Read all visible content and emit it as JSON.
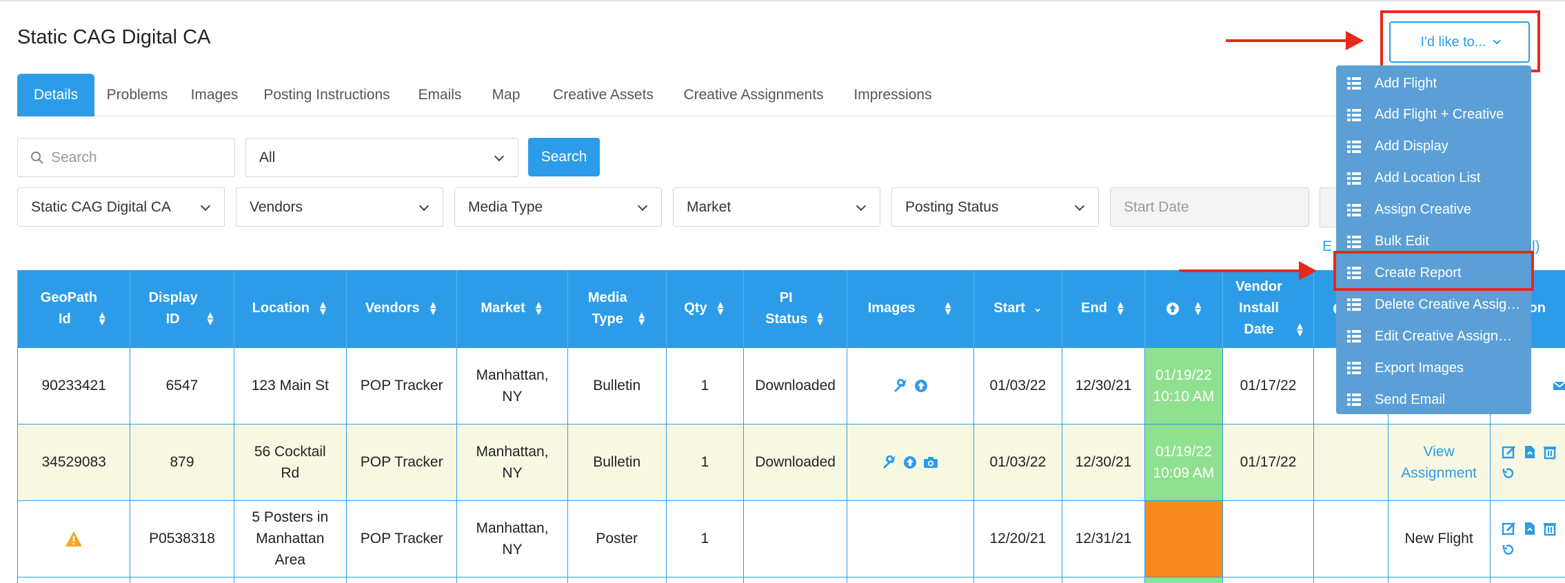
{
  "page": {
    "title": "Static CAG Digital CA"
  },
  "tabs": [
    {
      "label": "Details",
      "active": true
    },
    {
      "label": "Problems"
    },
    {
      "label": "Images"
    },
    {
      "label": "Posting Instructions"
    },
    {
      "label": "Emails"
    },
    {
      "label": "Map"
    },
    {
      "label": "Creative Assets"
    },
    {
      "label": "Creative Assignments"
    },
    {
      "label": "Impressions"
    }
  ],
  "filters": {
    "search_placeholder": "Search",
    "scope_value": "All",
    "search_button": "Search",
    "campaign_value": "Static CAG Digital CA",
    "vendors": "Vendors",
    "media_type": "Media Type",
    "market": "Market",
    "posting_status": "Posting Status",
    "start_date_placeholder": "Start Date",
    "edit_link_fragment": "E",
    "edit_link_tail": "l)"
  },
  "actions": {
    "button_label": "I'd like to...",
    "menu": [
      "Add Flight",
      "Add Flight + Creative",
      "Add Display",
      "Add Location List",
      "Assign Creative",
      "Bulk Edit",
      "Create Report",
      "Delete Creative Assig…",
      "Edit Creative Assign…",
      "Export Images",
      "Send Email"
    ],
    "highlighted": "Create Report"
  },
  "table": {
    "headers": [
      "GeoPath Id",
      "Display ID",
      "Location",
      "Vendors",
      "Market",
      "Media Type",
      "Qty",
      "PI Status",
      "Images",
      "Start",
      "End",
      "",
      "Vendor Install Date",
      "",
      "",
      "Action"
    ],
    "action_header_fragment": "ation",
    "rows": [
      {
        "geopath": "90233421",
        "display": "6547",
        "location": "123 Main St",
        "vendor": "POP Tracker",
        "market": "Manhattan, NY",
        "media": "Bulletin",
        "qty": "1",
        "pi": "Downloaded",
        "start": "01/03/22",
        "end": "12/30/21",
        "posted": "01/19/22 10:10 AM",
        "install": "01/17/22",
        "assignment": ""
      },
      {
        "geopath": "34529083",
        "display": "879",
        "location": "56 Cocktail Rd",
        "vendor": "POP Tracker",
        "market": "Manhattan, NY",
        "media": "Bulletin",
        "qty": "1",
        "pi": "Downloaded",
        "start": "01/03/22",
        "end": "12/30/21",
        "posted": "01/19/22 10:09 AM",
        "install": "01/17/22",
        "assignment": "View Assignment"
      },
      {
        "geopath": "",
        "display": "P0538318",
        "location": "5 Posters in Manhattan Area",
        "vendor": "POP Tracker",
        "market": "Manhattan, NY",
        "media": "Poster",
        "qty": "1",
        "pi": "",
        "start": "12/20/21",
        "end": "12/31/21",
        "posted": "",
        "install": "",
        "assignment": "New Flight"
      }
    ]
  },
  "colors": {
    "primary": "#2d9ce8",
    "menu_bg": "#5b9fd6",
    "highlight": "#e8281c",
    "posted_green": "#8fe08f",
    "warning_orange": "#f7891f",
    "row_alt": "#f8f8e2"
  },
  "icons": [
    "search-icon",
    "wrench-icon",
    "upload-icon",
    "camera-icon",
    "warning-icon",
    "list-icon",
    "edit-icon",
    "file-icon",
    "trash-icon",
    "mail-icon",
    "history-icon"
  ]
}
